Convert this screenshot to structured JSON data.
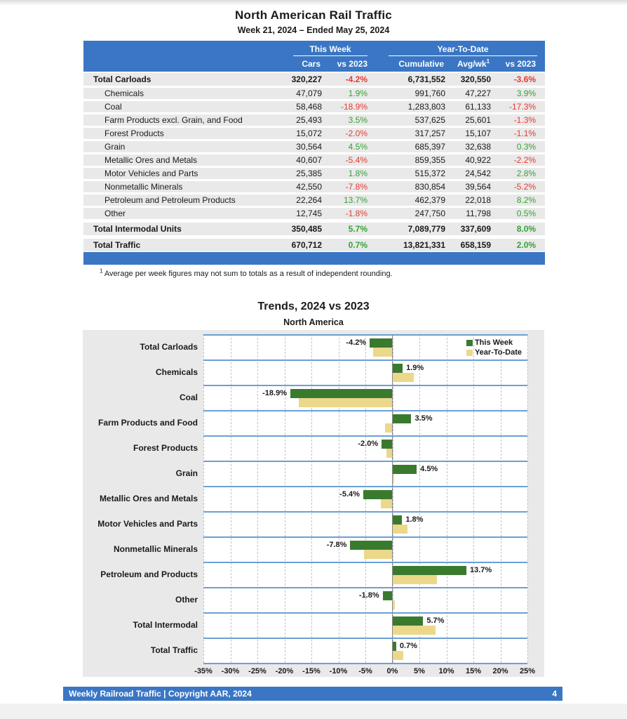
{
  "page": {
    "title": "North American Rail Traffic",
    "subtitle": "Week 21, 2024 – Ended May 25, 2024",
    "footnote_sup": "1",
    "footnote": "Average per week figures may not sum to totals as a result of independent rounding.",
    "footer_left": "Weekly Railroad Traffic | Copyright AAR, 2024",
    "footer_page_number": "4"
  },
  "table": {
    "group_headers": [
      "This Week",
      "Year-To-Date"
    ],
    "columns": [
      "Cars",
      "vs 2023",
      "Cumulative",
      "Avg/wk",
      "vs 2023"
    ],
    "avgwk_sup": "1",
    "rows": [
      {
        "label": "Total Carloads",
        "bold": true,
        "cars": "320,227",
        "tw_pct": "-4.2%",
        "cumulative": "6,731,552",
        "avg_wk": "320,550",
        "ytd_pct": "-3.6%"
      },
      {
        "label": "Chemicals",
        "bold": false,
        "cars": "47,079",
        "tw_pct": "1.9%",
        "cumulative": "991,760",
        "avg_wk": "47,227",
        "ytd_pct": "3.9%"
      },
      {
        "label": "Coal",
        "bold": false,
        "cars": "58,468",
        "tw_pct": "-18.9%",
        "cumulative": "1,283,803",
        "avg_wk": "61,133",
        "ytd_pct": "-17.3%"
      },
      {
        "label": "Farm Products excl. Grain, and Food",
        "bold": false,
        "cars": "25,493",
        "tw_pct": "3.5%",
        "cumulative": "537,625",
        "avg_wk": "25,601",
        "ytd_pct": "-1.3%"
      },
      {
        "label": "Forest Products",
        "bold": false,
        "cars": "15,072",
        "tw_pct": "-2.0%",
        "cumulative": "317,257",
        "avg_wk": "15,107",
        "ytd_pct": "-1.1%"
      },
      {
        "label": "Grain",
        "bold": false,
        "cars": "30,564",
        "tw_pct": "4.5%",
        "cumulative": "685,397",
        "avg_wk": "32,638",
        "ytd_pct": "0.3%"
      },
      {
        "label": "Metallic Ores and Metals",
        "bold": false,
        "cars": "40,607",
        "tw_pct": "-5.4%",
        "cumulative": "859,355",
        "avg_wk": "40,922",
        "ytd_pct": "-2.2%"
      },
      {
        "label": "Motor Vehicles and Parts",
        "bold": false,
        "cars": "25,385",
        "tw_pct": "1.8%",
        "cumulative": "515,372",
        "avg_wk": "24,542",
        "ytd_pct": "2.8%"
      },
      {
        "label": "Nonmetallic Minerals",
        "bold": false,
        "cars": "42,550",
        "tw_pct": "-7.8%",
        "cumulative": "830,854",
        "avg_wk": "39,564",
        "ytd_pct": "-5.2%"
      },
      {
        "label": "Petroleum and Petroleum Products",
        "bold": false,
        "cars": "22,264",
        "tw_pct": "13.7%",
        "cumulative": "462,379",
        "avg_wk": "22,018",
        "ytd_pct": "8.2%"
      },
      {
        "label": "Other",
        "bold": false,
        "cars": "12,745",
        "tw_pct": "-1.8%",
        "cumulative": "247,750",
        "avg_wk": "11,798",
        "ytd_pct": "0.5%"
      },
      {
        "label": "Total Intermodal Units",
        "bold": true,
        "cars": "350,485",
        "tw_pct": "5.7%",
        "cumulative": "7,089,779",
        "avg_wk": "337,609",
        "ytd_pct": "8.0%"
      },
      {
        "label": "Total Traffic",
        "bold": true,
        "cars": "670,712",
        "tw_pct": "0.7%",
        "cumulative": "13,821,331",
        "avg_wk": "658,159",
        "ytd_pct": "2.0%"
      }
    ]
  },
  "chart_data": {
    "type": "bar",
    "orientation": "horizontal",
    "title": "Trends, 2024 vs 2023",
    "subtitle": "North America",
    "categories": [
      "Total Carloads",
      "Chemicals",
      "Coal",
      "Farm Products and Food",
      "Forest Products",
      "Grain",
      "Metallic Ores and Metals",
      "Motor Vehicles and Parts",
      "Nonmetallic Minerals",
      "Petroleum and Products",
      "Other",
      "Total Intermodal",
      "Total Traffic"
    ],
    "series": [
      {
        "name": "This Week",
        "color": "#3a7a2f",
        "values": [
          -4.2,
          1.9,
          -18.9,
          3.5,
          -2.0,
          4.5,
          -5.4,
          1.8,
          -7.8,
          13.7,
          -1.8,
          5.7,
          0.7
        ]
      },
      {
        "name": "Year-To-Date",
        "color": "#ecd88a",
        "values": [
          -3.6,
          3.9,
          -17.3,
          -1.3,
          -1.1,
          0.3,
          -2.2,
          2.8,
          -5.2,
          8.2,
          0.5,
          8.0,
          2.0
        ]
      }
    ],
    "bar_labels": [
      "-4.2%",
      "1.9%",
      "-18.9%",
      "3.5%",
      "-2.0%",
      "4.5%",
      "-5.4%",
      "1.8%",
      "-7.8%",
      "13.7%",
      "-1.8%",
      "5.7%",
      "0.7%"
    ],
    "xlim": [
      -35,
      25
    ],
    "xticks": [
      "-35%",
      "-30%",
      "-25%",
      "-20%",
      "-15%",
      "-10%",
      "-5%",
      "0%",
      "5%",
      "10%",
      "15%",
      "20%",
      "25%"
    ],
    "legend_position": "top-right",
    "grid": "vertical-dashed"
  },
  "colors": {
    "header_blue": "#3a76c4",
    "positive_green": "#36a136",
    "negative_red": "#e8392e",
    "bar_green": "#3a7a2f",
    "bar_tan": "#ecd88a",
    "band_line_blue": "#6b9fd4"
  }
}
